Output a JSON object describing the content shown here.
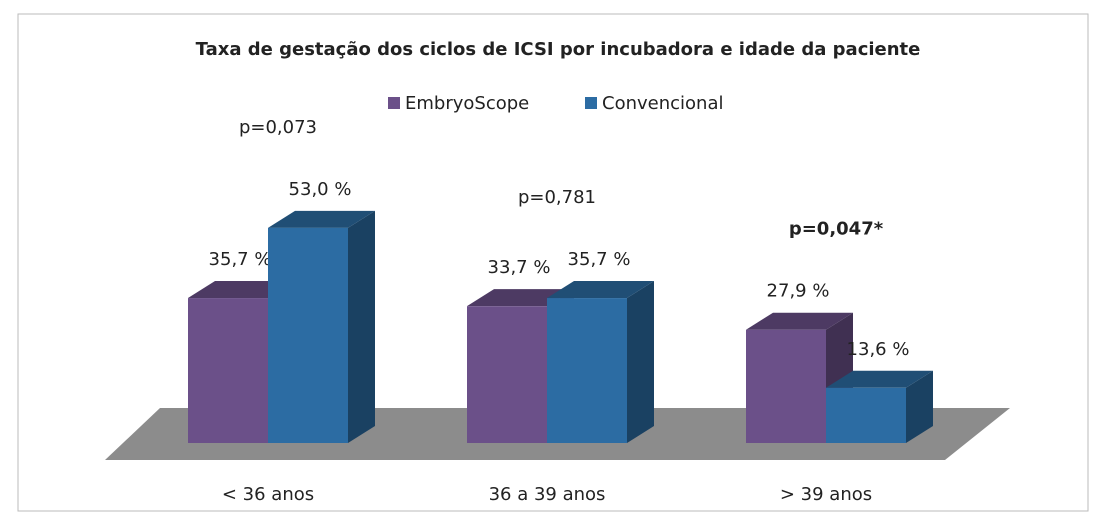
{
  "chart_data": {
    "type": "bar3d",
    "title": "Taxa de gestação dos ciclos de ICSI por incubadora e idade da paciente",
    "categories": [
      "< 36 anos",
      "36 a 39 anos",
      "> 39 anos"
    ],
    "series": [
      {
        "name": "EmbryoScope",
        "color": "#6b5089",
        "values": [
          35.7,
          33.7,
          27.9
        ],
        "value_labels": [
          "35,7 %",
          "33,7 %",
          "27,9 %"
        ]
      },
      {
        "name": "Convencional",
        "color": "#2c6ca3",
        "values": [
          53.0,
          35.7,
          13.6
        ],
        "value_labels": [
          "53,0 %",
          "35,7 %",
          "13,6 %"
        ]
      }
    ],
    "annotations": [
      {
        "text": "p=0,073",
        "bold": false
      },
      {
        "text": "p=0,781",
        "bold": false
      },
      {
        "text": "p=0,047*",
        "bold": true
      }
    ],
    "legend": "top"
  }
}
